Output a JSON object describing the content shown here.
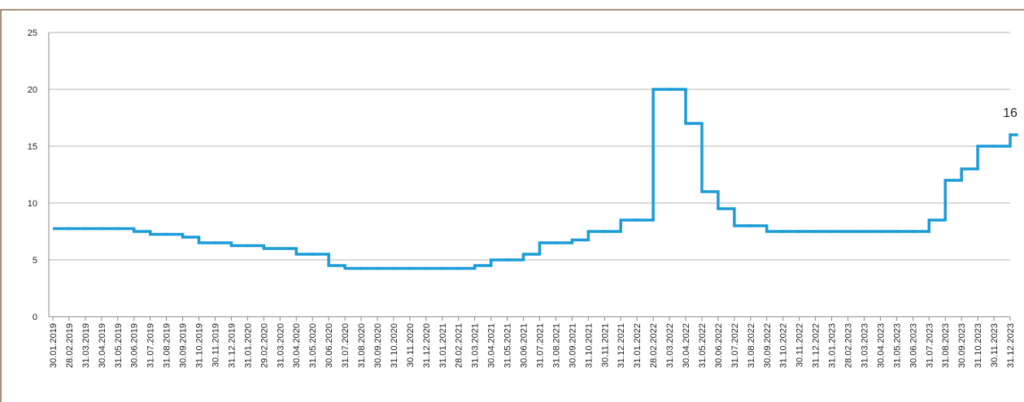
{
  "chart_data": {
    "type": "line",
    "categories": [
      "30.01.2019",
      "28.02.2019",
      "31.03.2019",
      "30.04.2019",
      "31.05.2019",
      "30.06.2019",
      "31.07.2019",
      "31.08.2019",
      "30.09.2019",
      "31.10.2019",
      "30.11.2019",
      "31.12.2019",
      "31.01.2020",
      "29.02.2020",
      "31.03.2020",
      "30.04.2020",
      "31.05.2020",
      "30.06.2020",
      "31.07.2020",
      "31.08.2020",
      "30.09.2020",
      "31.10.2020",
      "30.11.2020",
      "31.12.2020",
      "31.01.2021",
      "28.02.2021",
      "31.03.2021",
      "30.04.2021",
      "31.05.2021",
      "30.06.2021",
      "31.07.2021",
      "31.08.2021",
      "30.09.2021",
      "31.10.2021",
      "30.11.2021",
      "31.12.2021",
      "31.01.2022",
      "28.02.2022",
      "31.03.2022",
      "30.04.2022",
      "31.05.2022",
      "30.06.2022",
      "31.07.2022",
      "31.08.2022",
      "30.09.2022",
      "31.10.2022",
      "30.11.2022",
      "31.12.2022",
      "31.01.2023",
      "28.02.2023",
      "31.03.2023",
      "30.04.2023",
      "31.05.2023",
      "30.06.2023",
      "31.07.2023",
      "31.08.2023",
      "30.09.2023",
      "31.10.2023",
      "30.11.2023",
      "31.12.2023"
    ],
    "values": [
      7.75,
      7.75,
      7.75,
      7.75,
      7.75,
      7.5,
      7.25,
      7.25,
      7,
      6.5,
      6.5,
      6.25,
      6.25,
      6,
      6,
      5.5,
      5.5,
      4.5,
      4.25,
      4.25,
      4.25,
      4.25,
      4.25,
      4.25,
      4.25,
      4.25,
      4.5,
      5,
      5,
      5.5,
      6.5,
      6.5,
      6.75,
      7.5,
      7.5,
      8.5,
      8.5,
      20,
      20,
      17,
      11,
      9.5,
      8,
      8,
      7.5,
      7.5,
      7.5,
      7.5,
      7.5,
      7.5,
      7.5,
      7.5,
      7.5,
      7.5,
      8.5,
      12,
      13,
      15,
      15,
      16
    ],
    "color": "#1b9bd7",
    "ylim": [
      0,
      25
    ],
    "yticks": [
      0,
      5,
      10,
      15,
      20,
      25
    ],
    "grid": true
  }
}
